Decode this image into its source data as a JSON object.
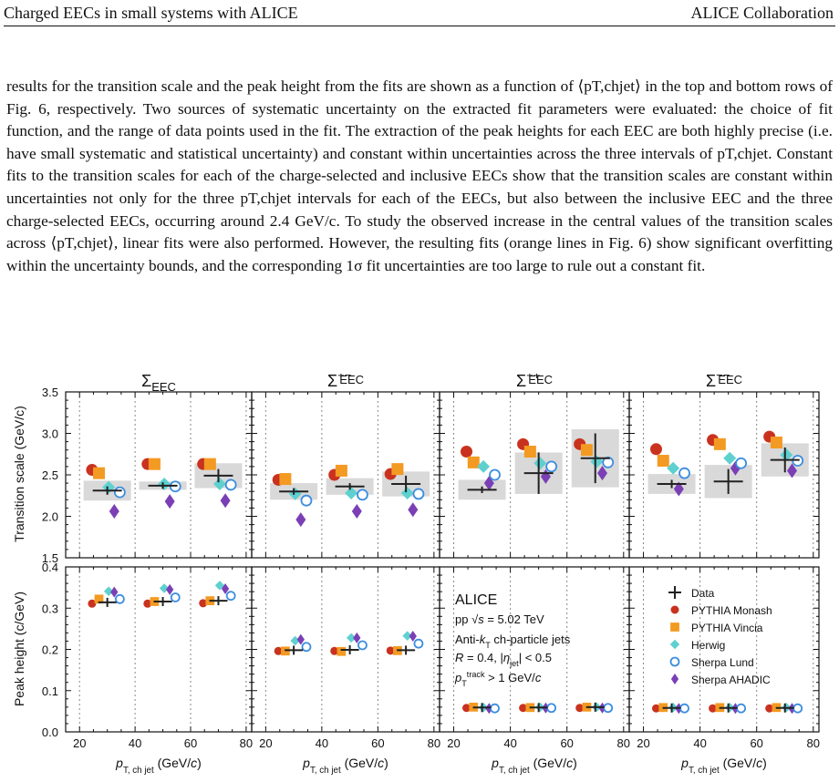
{
  "header": {
    "left": "Charged EECs in small systems with ALICE",
    "right": "ALICE Collaboration"
  },
  "paragraph": "results for the transition scale and the peak height from the fits are shown as a function of ⟨pT,chjet⟩ in the top and bottom rows of Fig. 6, respectively. Two sources of systematic uncertainty on the extracted fit parameters were evaluated: the choice of fit function, and the range of data points used in the fit. The extraction of the peak heights for each EEC are both highly precise (i.e. have small systematic and statistical uncertainty) and constant within uncertainties across the three intervals of pT,chjet. Constant fits to the transition scales for each of the charge-selected and inclusive EECs show that the transition scales are constant within uncertainties not only for the three pT,chjet intervals for each of the EECs, but also between the inclusive EEC and the three charge-selected EECs, occurring around 2.4 GeV/c. To study the observed increase in the central values of the transition scales across ⟨pT,chjet⟩, linear fits were also performed. However, the resulting fits (orange lines in Fig. 6) show significant overfitting within the uncertainty bounds, and the corresponding 1σ fit uncertainties are too large to rule out a constant fit.",
  "colors": {
    "data": "#222222",
    "pythia_monash": "#c9321f",
    "pythia_vincia": "#f39a22",
    "herwig": "#5fd0d0",
    "sherpa_lund": "#3b8de0",
    "sherpa_ahadic": "#7b3fb5",
    "band": "#d9d9d9"
  },
  "chart_data": {
    "type": "scatter",
    "panel_titles": [
      "Σ_EEC",
      "Σ^{+-}_EEC",
      "Σ^{++}_EEC",
      "Σ^{--}_EEC"
    ],
    "xlabel": "p_T,ch jet (GeV/c)",
    "xlim": [
      15,
      82
    ],
    "xticks": [
      20,
      40,
      60,
      80
    ],
    "x_bins": [
      30,
      50,
      70
    ],
    "top": {
      "ylabel": "Transition scale (GeV/c)",
      "ylim": [
        1.5,
        3.5
      ],
      "yticks": [
        "1.5",
        "2.0",
        "2.5",
        "3.0",
        "3.5"
      ],
      "panels": [
        {
          "data": [
            2.31,
            2.37,
            2.49
          ],
          "data_err": [
            0.05,
            0.04,
            0.08
          ],
          "sys": [
            0.12,
            0.05,
            0.15
          ],
          "pythia_monash": [
            2.56,
            2.63,
            2.63
          ],
          "pythia_vincia": [
            2.52,
            2.63,
            2.63
          ],
          "herwig": [
            2.35,
            2.39,
            2.39
          ],
          "sherpa_lund": [
            2.29,
            2.36,
            2.38
          ],
          "sherpa_ahadic": [
            2.06,
            2.18,
            2.19
          ]
        },
        {
          "data": [
            2.3,
            2.36,
            2.39
          ],
          "data_err": [
            0.04,
            0.04,
            0.1
          ],
          "sys": [
            0.1,
            0.1,
            0.15
          ],
          "pythia_monash": [
            2.44,
            2.5,
            2.51
          ],
          "pythia_vincia": [
            2.45,
            2.55,
            2.57
          ],
          "herwig": [
            2.27,
            2.28,
            2.28
          ],
          "sherpa_lund": [
            2.19,
            2.26,
            2.27
          ],
          "sherpa_ahadic": [
            1.96,
            2.06,
            2.08
          ]
        },
        {
          "data": [
            2.32,
            2.52,
            2.7
          ],
          "data_err": [
            0.04,
            0.25,
            0.3
          ],
          "sys": [
            0.12,
            0.25,
            0.35
          ],
          "pythia_monash": [
            2.78,
            2.87,
            2.87
          ],
          "pythia_vincia": [
            2.65,
            2.78,
            2.8
          ],
          "herwig": [
            2.6,
            2.64,
            2.66
          ],
          "sherpa_lund": [
            2.5,
            2.6,
            2.65
          ],
          "sherpa_ahadic": [
            2.4,
            2.48,
            2.52
          ]
        },
        {
          "data": [
            2.39,
            2.42,
            2.68
          ],
          "data_err": [
            0.05,
            0.15,
            0.15
          ],
          "sys": [
            0.12,
            0.2,
            0.2
          ],
          "pythia_monash": [
            2.81,
            2.92,
            2.96
          ],
          "pythia_vincia": [
            2.67,
            2.87,
            2.89
          ],
          "herwig": [
            2.58,
            2.7,
            2.74
          ],
          "sherpa_lund": [
            2.52,
            2.64,
            2.67
          ],
          "sherpa_ahadic": [
            2.33,
            2.58,
            2.55
          ]
        }
      ]
    },
    "bottom": {
      "ylabel": "Peak height (c/GeV)",
      "ylim": [
        0.0,
        0.4
      ],
      "yticks": [
        "0.0",
        "0.1",
        "0.2",
        "0.3",
        "0.4"
      ],
      "panels": [
        {
          "data": [
            0.314,
            0.316,
            0.318
          ],
          "pythia_monash": [
            0.311,
            0.311,
            0.312
          ],
          "pythia_vincia": [
            0.322,
            0.316,
            0.318
          ],
          "herwig": [
            0.341,
            0.348,
            0.355
          ],
          "sherpa_lund": [
            0.322,
            0.326,
            0.33
          ],
          "sherpa_ahadic": [
            0.339,
            0.345,
            0.347
          ]
        },
        {
          "data": [
            0.198,
            0.199,
            0.198
          ],
          "pythia_monash": [
            0.196,
            0.196,
            0.197
          ],
          "pythia_vincia": [
            0.196,
            0.195,
            0.197
          ],
          "herwig": [
            0.221,
            0.228,
            0.233
          ],
          "sherpa_lund": [
            0.206,
            0.21,
            0.214
          ],
          "sherpa_ahadic": [
            0.224,
            0.228,
            0.232
          ]
        },
        {
          "data": [
            0.059,
            0.059,
            0.06
          ],
          "pythia_monash": [
            0.058,
            0.058,
            0.058
          ],
          "pythia_vincia": [
            0.06,
            0.059,
            0.06
          ],
          "herwig": [
            0.059,
            0.06,
            0.06
          ],
          "sherpa_lund": [
            0.057,
            0.058,
            0.058
          ],
          "sherpa_ahadic": [
            0.057,
            0.058,
            0.058
          ]
        },
        {
          "data": [
            0.058,
            0.058,
            0.058
          ],
          "pythia_monash": [
            0.057,
            0.057,
            0.057
          ],
          "pythia_vincia": [
            0.059,
            0.059,
            0.059
          ],
          "herwig": [
            0.059,
            0.059,
            0.059
          ],
          "sherpa_lund": [
            0.057,
            0.057,
            0.057
          ],
          "sherpa_ahadic": [
            0.057,
            0.057,
            0.057
          ]
        }
      ]
    },
    "info_box": {
      "title": "ALICE",
      "lines": [
        "pp √s = 5.02 TeV",
        "Anti-kT ch-particle jets",
        "R = 0.4, |ηjet| < 0.5",
        "pT track > 1 GeV/c"
      ]
    },
    "legend": {
      "position": "bottom-right panel",
      "entries": [
        "Data",
        "PYTHIA Monash",
        "PYTHIA Vincia",
        "Herwig",
        "Sherpa Lund",
        "Sherpa AHADIC"
      ]
    },
    "grid": "dotted vertical lines at bin edges"
  }
}
